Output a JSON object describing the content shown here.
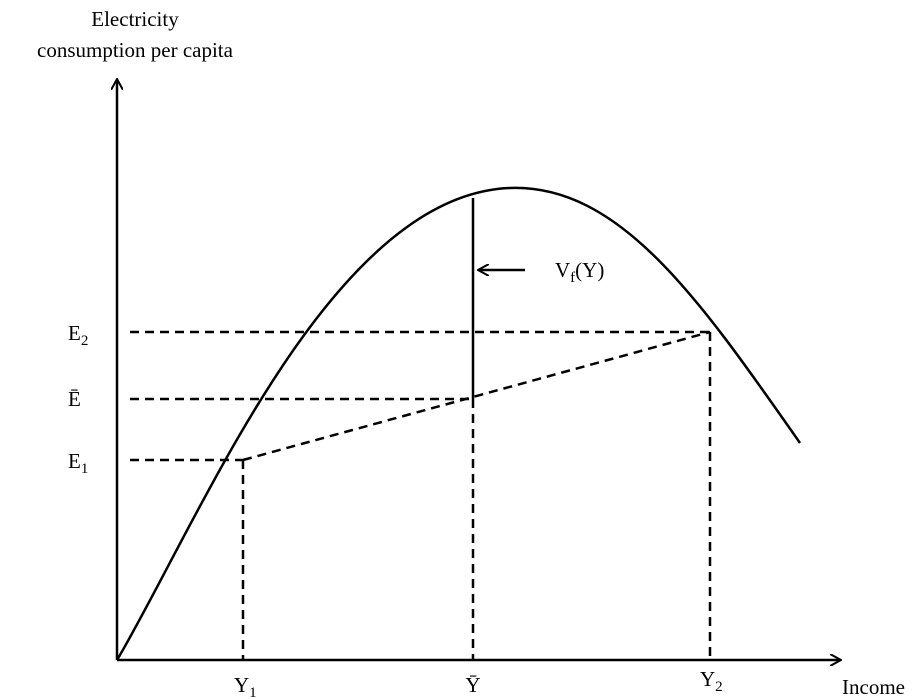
{
  "y_axis_label": [
    "Electricity",
    "consumption per capita"
  ],
  "x_axis_label": "Income",
  "y_labels": [
    {
      "main": "E",
      "sub": "2"
    },
    {
      "main": "Ē"
    },
    {
      "main": "E",
      "sub": "1"
    }
  ],
  "x_labels": [
    {
      "main": "Y",
      "sub": "1"
    },
    {
      "main": "Ȳ"
    },
    {
      "main": "Y",
      "sub": "2"
    }
  ],
  "annotation": {
    "main": "V",
    "sub": "f",
    "rest": "(Y)"
  }
}
